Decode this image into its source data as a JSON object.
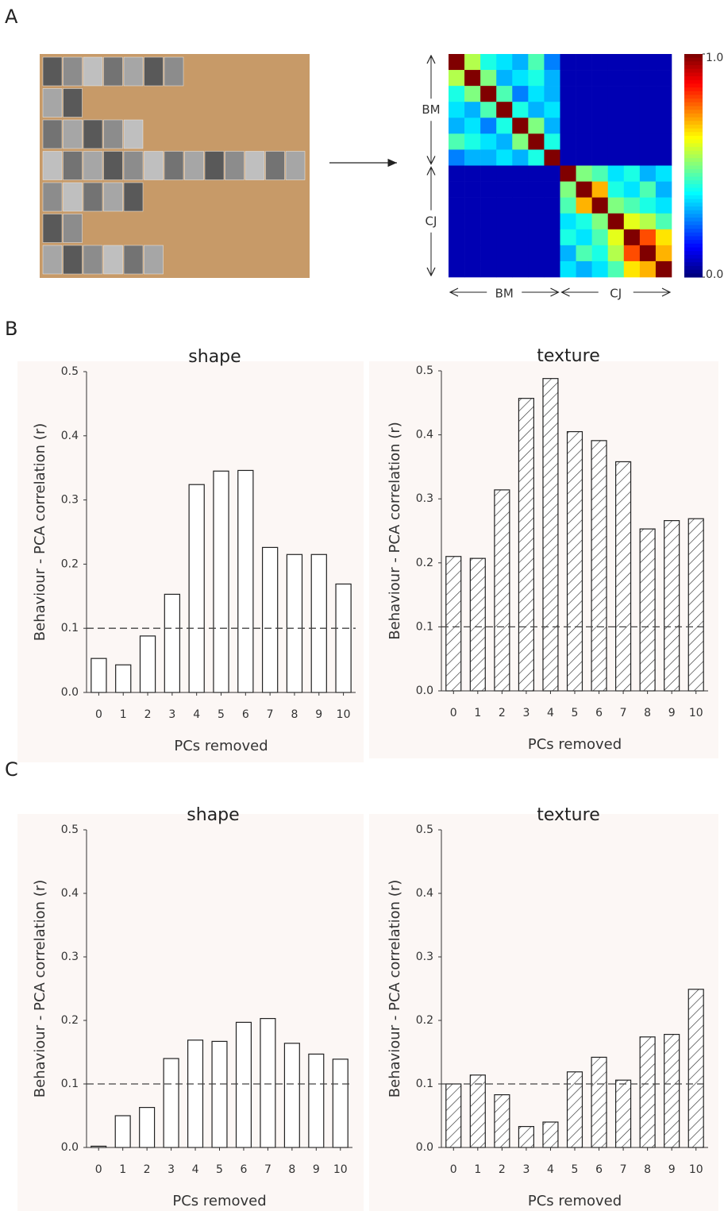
{
  "panel_labels": [
    "A",
    "B",
    "C"
  ],
  "chart_data": [
    {
      "type": "heatmap",
      "row_groups": [
        "BM",
        "CJ"
      ],
      "col_groups": [
        "BM",
        "CJ"
      ],
      "clim": [
        0,
        1
      ],
      "cbar_ticks": [
        {
          "value": 1,
          "label": "1.0"
        },
        {
          "value": 0,
          "label": "0.0"
        }
      ],
      "values": [
        [
          1.0,
          0.55,
          0.4,
          0.35,
          0.3,
          0.45,
          0.25,
          0.05,
          0.05,
          0.05,
          0.05,
          0.05,
          0.05,
          0.05
        ],
        [
          0.55,
          1.0,
          0.5,
          0.3,
          0.35,
          0.4,
          0.3,
          0.05,
          0.05,
          0.05,
          0.05,
          0.05,
          0.05,
          0.05
        ],
        [
          0.4,
          0.5,
          1.0,
          0.45,
          0.25,
          0.35,
          0.3,
          0.05,
          0.05,
          0.05,
          0.05,
          0.05,
          0.05,
          0.05
        ],
        [
          0.35,
          0.3,
          0.45,
          1.0,
          0.4,
          0.3,
          0.35,
          0.05,
          0.05,
          0.05,
          0.05,
          0.05,
          0.05,
          0.05
        ],
        [
          0.3,
          0.35,
          0.25,
          0.4,
          1.0,
          0.5,
          0.3,
          0.05,
          0.05,
          0.05,
          0.05,
          0.05,
          0.05,
          0.05
        ],
        [
          0.45,
          0.4,
          0.35,
          0.3,
          0.5,
          1.0,
          0.4,
          0.05,
          0.05,
          0.05,
          0.05,
          0.05,
          0.05,
          0.05
        ],
        [
          0.25,
          0.3,
          0.3,
          0.35,
          0.3,
          0.4,
          1.0,
          0.05,
          0.05,
          0.05,
          0.05,
          0.05,
          0.05,
          0.05
        ],
        [
          0.05,
          0.05,
          0.05,
          0.05,
          0.05,
          0.05,
          0.05,
          1.0,
          0.5,
          0.45,
          0.35,
          0.4,
          0.3,
          0.35
        ],
        [
          0.05,
          0.05,
          0.05,
          0.05,
          0.05,
          0.05,
          0.05,
          0.5,
          1.0,
          0.7,
          0.4,
          0.35,
          0.45,
          0.3
        ],
        [
          0.05,
          0.05,
          0.05,
          0.05,
          0.05,
          0.05,
          0.05,
          0.45,
          0.7,
          1.0,
          0.5,
          0.45,
          0.4,
          0.35
        ],
        [
          0.05,
          0.05,
          0.05,
          0.05,
          0.05,
          0.05,
          0.05,
          0.35,
          0.4,
          0.5,
          1.0,
          0.6,
          0.55,
          0.45
        ],
        [
          0.05,
          0.05,
          0.05,
          0.05,
          0.05,
          0.05,
          0.05,
          0.4,
          0.35,
          0.45,
          0.6,
          1.0,
          0.8,
          0.65
        ],
        [
          0.05,
          0.05,
          0.05,
          0.05,
          0.05,
          0.05,
          0.05,
          0.3,
          0.45,
          0.4,
          0.55,
          0.8,
          1.0,
          0.7
        ],
        [
          0.05,
          0.05,
          0.05,
          0.05,
          0.05,
          0.05,
          0.05,
          0.35,
          0.3,
          0.35,
          0.45,
          0.65,
          0.7,
          1.0
        ]
      ]
    },
    {
      "type": "bar",
      "title": "shape",
      "xlabel": "PCs removed",
      "ylabel": "Behaviour - PCA correlation (r)",
      "categories": [
        "0",
        "1",
        "2",
        "3",
        "4",
        "5",
        "6",
        "7",
        "8",
        "9",
        "10"
      ],
      "values": [
        0.053,
        0.043,
        0.088,
        0.153,
        0.324,
        0.345,
        0.346,
        0.226,
        0.215,
        0.215,
        0.169
      ],
      "ylim": [
        0,
        0.5
      ],
      "yticks": [
        {
          "value": 0,
          "label": "0.0"
        },
        {
          "value": 0.1,
          "label": "0.1"
        },
        {
          "value": 0.2,
          "label": "0.2"
        },
        {
          "value": 0.3,
          "label": "0.3"
        },
        {
          "value": 0.4,
          "label": "0.4"
        },
        {
          "value": 0.5,
          "label": "0.5"
        }
      ],
      "reference_line": 0.1,
      "hatch": false,
      "color": "#ffffff"
    },
    {
      "type": "bar",
      "title": "texture",
      "xlabel": "PCs removed",
      "ylabel": "Behaviour - PCA correlation (r)",
      "categories": [
        "0",
        "1",
        "2",
        "3",
        "4",
        "5",
        "6",
        "7",
        "8",
        "9",
        "10"
      ],
      "values": [
        0.21,
        0.207,
        0.314,
        0.457,
        0.488,
        0.405,
        0.391,
        0.358,
        0.253,
        0.266,
        0.269
      ],
      "ylim": [
        0,
        0.5
      ],
      "yticks": [
        {
          "value": 0,
          "label": "0.0"
        },
        {
          "value": 0.1,
          "label": "0.1"
        },
        {
          "value": 0.2,
          "label": "0.2"
        },
        {
          "value": 0.3,
          "label": "0.3"
        },
        {
          "value": 0.4,
          "label": "0.4"
        },
        {
          "value": 0.5,
          "label": "0.5"
        }
      ],
      "reference_line": 0.1,
      "hatch": true,
      "color": "#ffffff"
    },
    {
      "type": "bar",
      "title": "shape",
      "xlabel": "PCs removed",
      "ylabel": "Behaviour - PCA correlation (r)",
      "categories": [
        "0",
        "1",
        "2",
        "3",
        "4",
        "5",
        "6",
        "7",
        "8",
        "9",
        "10"
      ],
      "values": [
        0.002,
        0.05,
        0.063,
        0.14,
        0.169,
        0.167,
        0.197,
        0.203,
        0.164,
        0.147,
        0.139
      ],
      "ylim": [
        0,
        0.5
      ],
      "yticks": [
        {
          "value": 0,
          "label": "0.0"
        },
        {
          "value": 0.1,
          "label": "0.1"
        },
        {
          "value": 0.2,
          "label": "0.2"
        },
        {
          "value": 0.3,
          "label": "0.3"
        },
        {
          "value": 0.4,
          "label": "0.4"
        },
        {
          "value": 0.5,
          "label": "0.5"
        }
      ],
      "reference_line": 0.1,
      "hatch": false,
      "color": "#ffffff"
    },
    {
      "type": "bar",
      "title": "texture",
      "xlabel": "PCs removed",
      "ylabel": "Behaviour - PCA correlation (r)",
      "categories": [
        "0",
        "1",
        "2",
        "3",
        "4",
        "5",
        "6",
        "7",
        "8",
        "9",
        "10"
      ],
      "values": [
        0.1,
        0.114,
        0.083,
        0.033,
        0.04,
        0.119,
        0.142,
        0.106,
        0.174,
        0.178,
        0.249
      ],
      "ylim": [
        0,
        0.5
      ],
      "yticks": [
        {
          "value": 0,
          "label": "0.0"
        },
        {
          "value": 0.1,
          "label": "0.1"
        },
        {
          "value": 0.2,
          "label": "0.2"
        },
        {
          "value": 0.3,
          "label": "0.3"
        },
        {
          "value": 0.4,
          "label": "0.4"
        },
        {
          "value": 0.5,
          "label": "0.5"
        }
      ],
      "reference_line": 0.1,
      "hatch": true,
      "color": "#ffffff"
    }
  ]
}
